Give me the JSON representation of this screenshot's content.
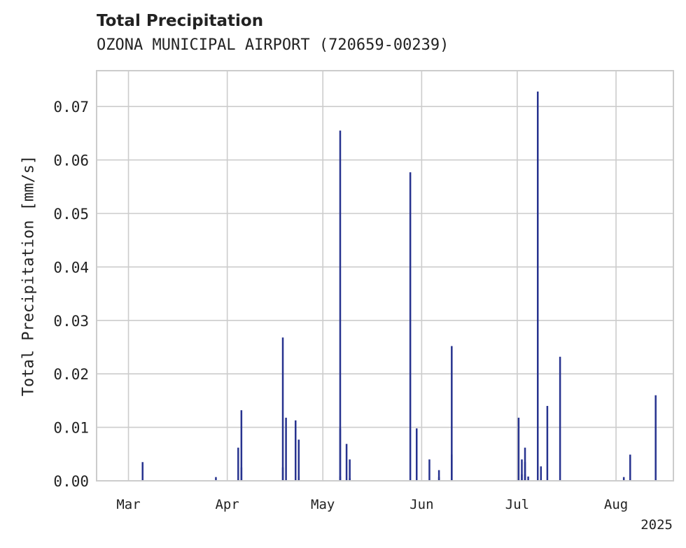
{
  "chart_data": {
    "type": "bar",
    "title": "Total Precipitation",
    "subtitle": "OZONA MUNICIPAL AIRPORT (720659-00239)",
    "xlabel": "",
    "ylabel": "Total Precipitation [mm/s]",
    "x_year_label": "2025",
    "xlim": [
      "2025-02-19",
      "2025-08-19"
    ],
    "ylim": [
      0,
      0.0767
    ],
    "yticks": [
      0.0,
      0.01,
      0.02,
      0.03,
      0.04,
      0.05,
      0.06,
      0.07
    ],
    "ytick_labels": [
      "0.00",
      "0.01",
      "0.02",
      "0.03",
      "0.04",
      "0.05",
      "0.06",
      "0.07"
    ],
    "xticks": [
      "2025-03-01",
      "2025-04-01",
      "2025-05-01",
      "2025-06-01",
      "2025-07-01",
      "2025-08-01"
    ],
    "xtick_labels": [
      "Mar",
      "Apr",
      "May",
      "Jun",
      "Jul",
      "Aug"
    ],
    "grid": true,
    "bar_color": "#27338f",
    "series": [
      {
        "x": [
          "2025-03-05",
          "2025-03-28",
          "2025-04-04",
          "2025-04-05",
          "2025-04-05",
          "2025-04-18",
          "2025-04-18",
          "2025-04-19",
          "2025-04-22",
          "2025-04-23",
          "2025-04-23",
          "2025-05-06",
          "2025-05-06",
          "2025-05-06",
          "2025-05-08",
          "2025-05-09",
          "2025-05-09",
          "2025-05-28",
          "2025-05-30",
          "2025-05-30",
          "2025-06-03",
          "2025-06-06",
          "2025-06-06",
          "2025-06-10",
          "2025-06-10",
          "2025-07-01",
          "2025-07-02",
          "2025-07-02",
          "2025-07-03",
          "2025-07-03",
          "2025-07-03",
          "2025-07-04",
          "2025-07-07",
          "2025-07-08",
          "2025-07-10",
          "2025-07-14",
          "2025-08-03",
          "2025-08-05",
          "2025-08-13"
        ],
        "values": [
          0.0035,
          0.0007,
          0.0062,
          0.0132,
          0.0025,
          0.0268,
          0.0025,
          0.0118,
          0.0113,
          0.0077,
          0.0008,
          0.0655,
          0.0098,
          0.0008,
          0.0069,
          0.004,
          0.0005,
          0.0577,
          0.0098,
          0.002,
          0.004,
          0.002,
          0.0007,
          0.0252,
          0.0049,
          0.0118,
          0.004,
          0.0012,
          0.0062,
          0.0035,
          0.0012,
          0.0008,
          0.0728,
          0.0027,
          0.014,
          0.0232,
          0.0007,
          0.0049,
          0.016
        ]
      }
    ]
  }
}
